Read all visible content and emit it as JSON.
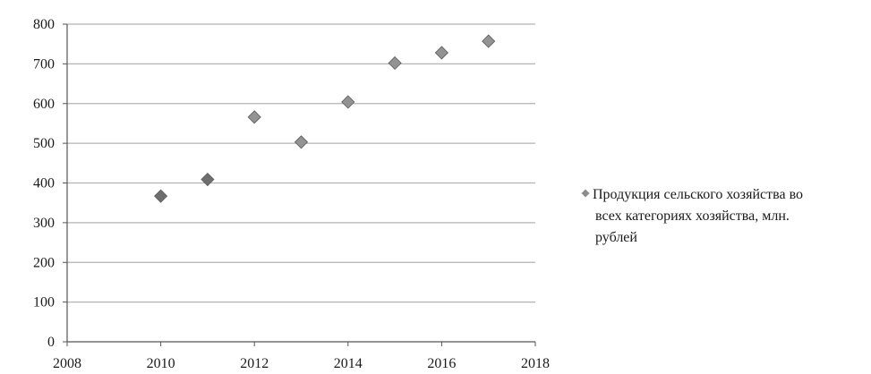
{
  "chart_data": {
    "type": "scatter",
    "title": "",
    "xlabel": "",
    "ylabel": "",
    "xlim": [
      2008,
      2018
    ],
    "ylim": [
      0,
      800
    ],
    "x_ticks": [
      2008,
      2010,
      2012,
      2014,
      2016,
      2018
    ],
    "y_ticks": [
      0,
      100,
      200,
      300,
      400,
      500,
      600,
      700,
      800
    ],
    "x_tick_labels": [
      "2008",
      "2010",
      "2012",
      "2014",
      "2016",
      "2018"
    ],
    "y_tick_labels": [
      "0",
      "100",
      "200",
      "300",
      "400",
      "500",
      "600",
      "700",
      "800"
    ],
    "grid": "horizontal",
    "legend_position": "right",
    "series": [
      {
        "name": "Продукция сельского хозяйства во всех категориях хозяйства, млн. рублей",
        "color": "#8c8c8c",
        "marker": "diamond",
        "points": [
          {
            "x": 2010,
            "y": 367
          },
          {
            "x": 2011,
            "y": 409
          },
          {
            "x": 2012,
            "y": 566
          },
          {
            "x": 2013,
            "y": 503
          },
          {
            "x": 2014,
            "y": 604
          },
          {
            "x": 2015,
            "y": 702
          },
          {
            "x": 2016,
            "y": 728
          },
          {
            "x": 2017,
            "y": 757
          }
        ]
      }
    ],
    "legend_lines": [
      "Продукция сельского хозяйства во",
      "всех категориях хозяйства, млн.",
      "рублей"
    ]
  }
}
